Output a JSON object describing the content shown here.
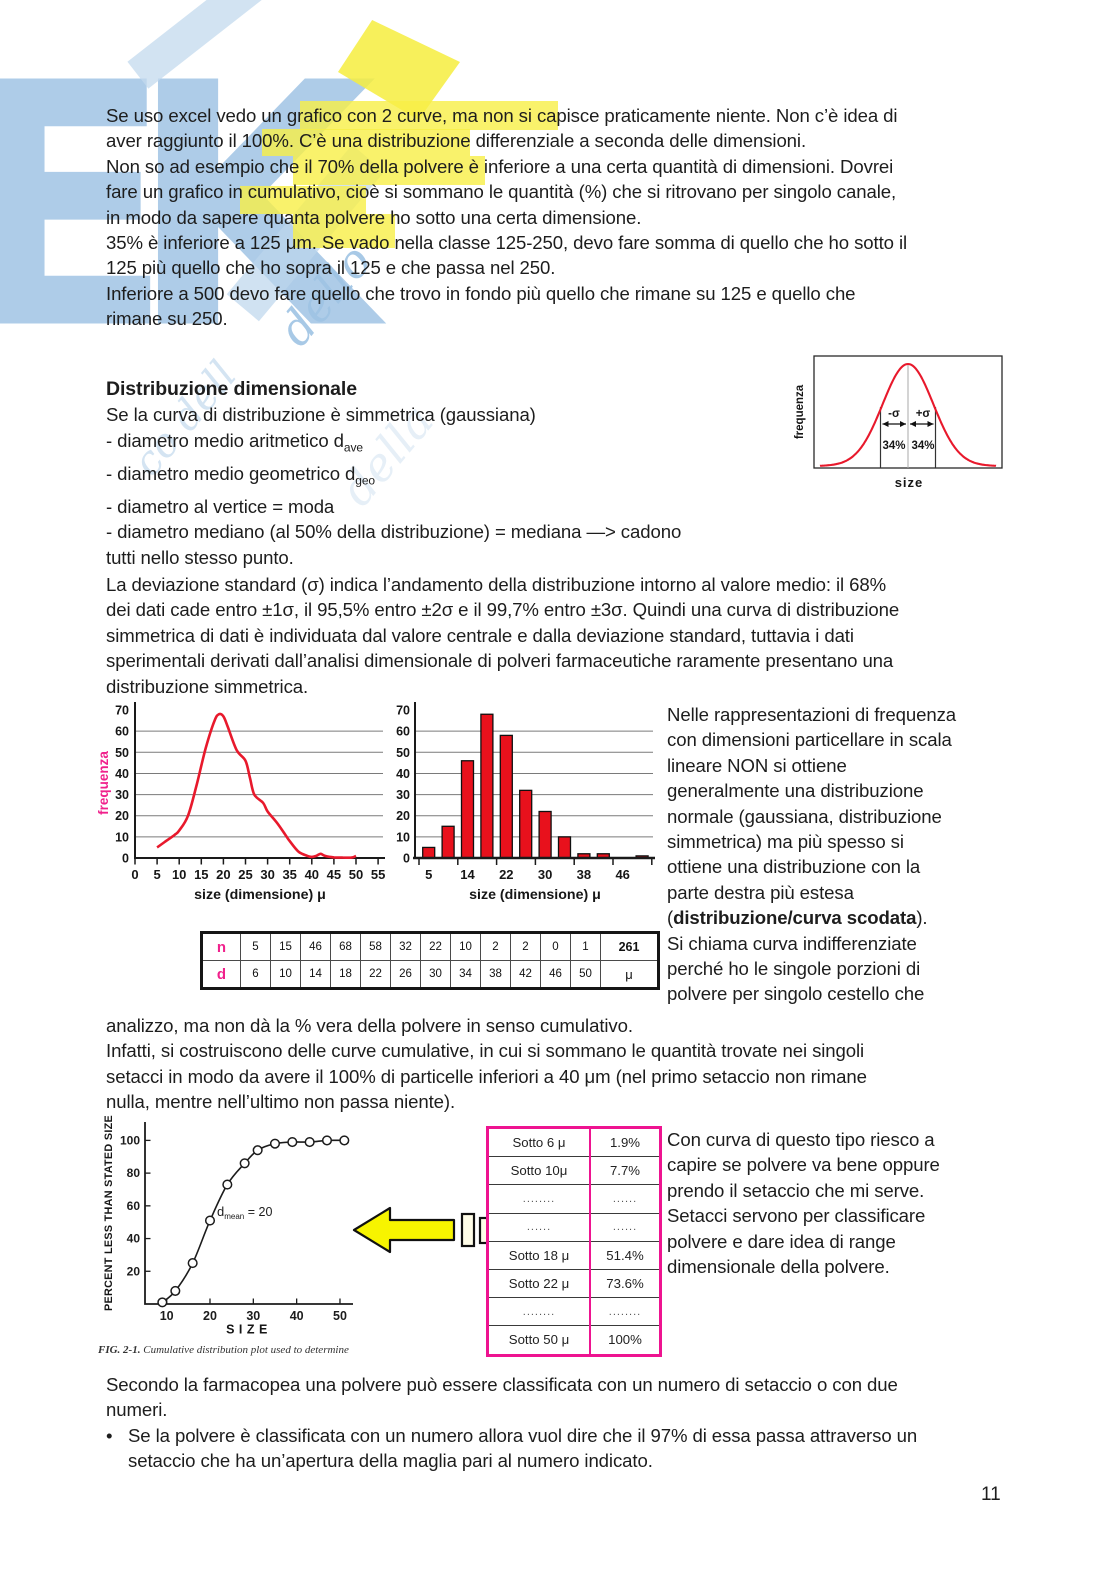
{
  "watermark": {
    "letters": "EK",
    "script1": "dello",
    "script2": "co dell",
    "script3": "della"
  },
  "paragraph1": {
    "lines": [
      "Se uso excel vedo un grafico con 2 curve, ma non si capisce praticamente niente. Non c’è idea di",
      "aver raggiunto il 100%. C’è una distribuzione differenziale a seconda delle dimensioni.",
      "Non so ad esempio che il 70% della polvere è inferiore a una certa quantità di dimensioni. Dovrei",
      "fare un grafico in cumulativo, cioè si sommano le quantità (%) che si ritrovano per singolo canale,",
      "in modo da sapere quanta polvere ho sotto una certa dimensione.",
      "35% è inferiore a 125 μm. Se vado nella classe 125-250, devo fare somma di quello che ho sotto il",
      "125 più quello che ho sopra il 125 e che passa nel 250.",
      "Inferiore a 500 devo fare quello che trovo in fondo più quello che rimane su 125 e quello che",
      "rimane su 250."
    ]
  },
  "section": {
    "heading": "Distribuzione dimensionale",
    "intro": "Se la curva di distribuzione è simmetrica (gaussiana)",
    "items": [
      {
        "text": "- diametro medio aritmetico d",
        "sub": "ave"
      },
      {
        "text": "- diametro medio geometrico d",
        "sub": "geo"
      },
      {
        "text": "- diametro al vertice = moda",
        "sub": ""
      },
      {
        "text": "- diametro mediano (al 50% della distribuzione) = mediana —> cadono",
        "sub": ""
      },
      {
        "text": "tutti nello stesso punto.",
        "sub": ""
      }
    ]
  },
  "paragraph_sigma": {
    "lines": [
      "La deviazione standard (σ) indica l’andamento della distribuzione intorno al valore medio: il 68%",
      "dei dati cade entro ±1σ, il 95,5% entro ±2σ e il 99,7% entro ±3σ. Quindi una curva di distribuzione",
      "simmetrica di dati è individuata dal valore centrale e dalla deviazione standard, tuttavia i dati",
      "sperimentali derivati dall’analisi dimensionale di polveri farmaceutiche raramente presentano una",
      "distribuzione simmetrica."
    ]
  },
  "right_column": {
    "lines_before": [
      "Nelle rappresentazioni di frequenza",
      "con dimensioni particellare in scala",
      "lineare NON si ottiene",
      "generalmente una distribuzione",
      "normale (gaussiana, distribuzione",
      "simmetrica) ma più spesso si",
      "ottiene una distribuzione con la",
      "parte destra più estesa"
    ],
    "bold_line": {
      "prefix": "(",
      "bold": "distribuzione/curva scodata",
      "suffix": ")."
    },
    "lines_after": [
      "Si chiama curva indifferenziate",
      "perché ho le singole porzioni di",
      "polvere per singolo cestello che"
    ]
  },
  "paragraph_cumulative": {
    "lines": [
      "analizzo, ma non dà la % vera della polvere in senso cumulativo.",
      "Infatti, si costruiscono delle curve cumulative, in cui si sommano le quantità trovate nei singoli",
      "setacci in modo da avere il 100% di particelle inferiori a 40 μm (nel primo setaccio non rimane",
      "nulla, mentre nell’ultimo non passa niente)."
    ]
  },
  "nd_table": {
    "row1_label": "n",
    "row1": [
      "5",
      "15",
      "46",
      "68",
      "58",
      "32",
      "22",
      "10",
      "2",
      "2",
      "0",
      "1"
    ],
    "row1_total": "261",
    "row2_label": "d",
    "row2": [
      "6",
      "10",
      "14",
      "18",
      "22",
      "26",
      "30",
      "34",
      "38",
      "42",
      "46",
      "50"
    ],
    "row2_total": "μ"
  },
  "sotto_table": {
    "rows": [
      [
        "Sotto 6 μ",
        "1.9%"
      ],
      [
        "Sotto 10μ",
        "7.7%"
      ],
      [
        "........",
        "......"
      ],
      [
        "......",
        "......"
      ],
      [
        "Sotto 18 μ",
        "51.4%"
      ],
      [
        "Sotto 22 μ",
        "73.6%"
      ],
      [
        "........",
        "........"
      ],
      [
        "Sotto 50 μ",
        "100%"
      ]
    ]
  },
  "right_column2": {
    "lines": [
      "Con curva di questo tipo riesco a",
      "capire se polvere va bene oppure",
      "prendo il setaccio che mi serve.",
      "Setacci servono per classificare",
      "polvere e dare idea di range",
      "dimensionale della polvere."
    ]
  },
  "paragraph_bottom": {
    "lines": [
      "Secondo la farmacopea una polvere può essere classificata con un numero di setaccio o con due",
      "numeri."
    ],
    "bullet_line1": "Se la polvere è classificata con un numero allora vuol dire che il 97% di essa passa attraverso un",
    "bullet_line2": "setaccio che ha un’apertura della maglia pari al numero indicato."
  },
  "page": {
    "number": "11"
  },
  "colors": {
    "curve_red": "#e8192c",
    "bar_red": "#e8111c",
    "magenta_label": "#f0218c",
    "table_border_magenta": "#ee1390",
    "arrow_yellow": "#f7f400",
    "watermark_blue": "#5f9bd3",
    "watermark_yellow": "#f7ef46",
    "grid_gray": "#7a7a7a"
  },
  "chart_data": [
    {
      "type": "line",
      "name": "gaussian-frequency-curve",
      "title": "",
      "ylabel": "frequenza",
      "xlabel": "size",
      "grid": false,
      "legend": "none",
      "curve": "normal-bell",
      "annotations": {
        "minus_sigma": "-σ",
        "plus_sigma": "+σ",
        "left_pct": "34%",
        "right_pct": "34%"
      }
    },
    {
      "type": "line",
      "name": "differential-frequency-distribution",
      "title": "",
      "ylabel": "frequenza",
      "xlabel": "size (dimensione) μ",
      "xlim": [
        0,
        57
      ],
      "ylim": [
        0,
        70
      ],
      "xticks": [
        0,
        5,
        10,
        15,
        20,
        25,
        30,
        35,
        40,
        45,
        50,
        55
      ],
      "yticks": [
        0,
        10,
        20,
        30,
        40,
        50,
        60,
        70
      ],
      "grid": true,
      "x": [
        5,
        7,
        9,
        10,
        12,
        14,
        16,
        18,
        19,
        20,
        21,
        23,
        25,
        26,
        27,
        29,
        30,
        32,
        34,
        35,
        37,
        39,
        40,
        41,
        42,
        43,
        45,
        47,
        49,
        50
      ],
      "y": [
        5,
        8,
        11,
        13,
        20,
        35,
        52,
        65,
        68,
        67,
        62,
        51,
        46,
        38,
        30,
        26,
        22,
        17,
        11,
        8,
        3,
        1,
        0.5,
        1,
        2,
        1,
        0.3,
        0.2,
        0.2,
        1
      ]
    },
    {
      "type": "bar",
      "name": "frequency-histogram",
      "title": "",
      "xlabel": "size (dimensione) μ",
      "categories": [
        6,
        10,
        14,
        18,
        22,
        26,
        30,
        34,
        38,
        42,
        46,
        50
      ],
      "values": [
        5,
        15,
        46,
        68,
        58,
        32,
        22,
        10,
        2,
        2,
        0,
        1
      ],
      "xticklabels": [
        "5",
        "14",
        "22",
        "30",
        "38",
        "46"
      ],
      "ylim": [
        0,
        70
      ],
      "yticks": [
        0,
        10,
        20,
        30,
        40,
        50,
        60,
        70
      ],
      "grid": true
    },
    {
      "type": "scatter",
      "name": "cumulative-distribution-plot",
      "title": "",
      "ylabel": "PERCENT LESS THAN STATED SIZE",
      "xlabel": "SIZE",
      "xlim": [
        5,
        53
      ],
      "ylim": [
        0,
        110
      ],
      "xticks": [
        10,
        20,
        30,
        40,
        50
      ],
      "yticks": [
        20,
        40,
        60,
        80,
        100
      ],
      "x": [
        9,
        12,
        16,
        20,
        24,
        28,
        31,
        35,
        39,
        43,
        47,
        51
      ],
      "y": [
        1,
        8,
        25,
        51,
        73,
        86,
        94,
        98,
        99,
        99,
        100,
        100
      ],
      "annotation": {
        "text": "d",
        "sub": "mean",
        "eq": "= 20"
      },
      "caption_bold": "FIG. 2-1.",
      "caption_rest": " Cumulative distribution plot used to determine"
    }
  ]
}
